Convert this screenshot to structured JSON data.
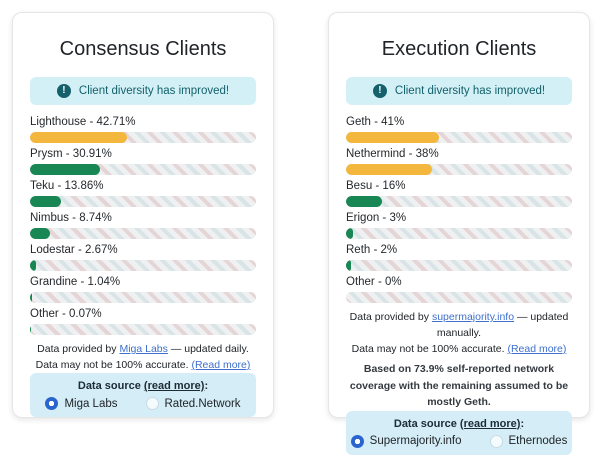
{
  "colors": {
    "warning_fill": "#f3b73d",
    "ok_fill": "#198754",
    "banner_bg": "#d3f0f6",
    "banner_fg": "#14616b",
    "link": "#3e70cc",
    "radio_selected": "#2a65cf",
    "datasource_bg": "#d4edf6"
  },
  "cards": [
    {
      "title": "Consensus Clients",
      "banner": {
        "icon": "exclamation-circle-icon",
        "text": "Client diversity has improved!"
      },
      "bars": [
        {
          "label": "Lighthouse - 42.71%",
          "percent": 42.71,
          "color": "#f3b73d"
        },
        {
          "label": "Prysm - 30.91%",
          "percent": 30.91,
          "color": "#198754"
        },
        {
          "label": "Teku - 13.86%",
          "percent": 13.86,
          "color": "#198754"
        },
        {
          "label": "Nimbus - 8.74%",
          "percent": 8.74,
          "color": "#198754"
        },
        {
          "label": "Lodestar - 2.67%",
          "percent": 2.67,
          "color": "#198754"
        },
        {
          "label": "Grandine - 1.04%",
          "percent": 1.04,
          "color": "#198754"
        },
        {
          "label": "Other - 0.07%",
          "percent": 0.07,
          "color": "#198754"
        }
      ],
      "attribution": {
        "line1_prefix": "Data provided by ",
        "line1_link": "Miga Labs",
        "line1_suffix": " — updated daily.",
        "line2_prefix": "Data may not be 100% accurate. ",
        "line2_link": "(Read more)"
      },
      "datasource": {
        "label": "Data source ",
        "readmore": "(read more)",
        "colon": ":",
        "options": [
          {
            "label": "Miga Labs",
            "selected": true
          },
          {
            "label": "Rated.Network",
            "selected": false
          }
        ]
      }
    },
    {
      "title": "Execution Clients",
      "banner": {
        "icon": "exclamation-circle-icon",
        "text": "Client diversity has improved!"
      },
      "bars": [
        {
          "label": "Geth - 41%",
          "percent": 41,
          "color": "#f3b73d"
        },
        {
          "label": "Nethermind - 38%",
          "percent": 38,
          "color": "#f3b73d"
        },
        {
          "label": "Besu - 16%",
          "percent": 16,
          "color": "#198754"
        },
        {
          "label": "Erigon - 3%",
          "percent": 3,
          "color": "#198754"
        },
        {
          "label": "Reth - 2%",
          "percent": 2,
          "color": "#198754"
        },
        {
          "label": "Other - 0%",
          "percent": 0,
          "color": "#198754"
        }
      ],
      "attribution": {
        "line1_prefix": "Data provided by ",
        "line1_link": "supermajority.info",
        "line1_suffix": " — updated manually.",
        "line2_prefix": "Data may not be 100% accurate. ",
        "line2_link": "(Read more)"
      },
      "note": "Based on 73.9% self-reported network coverage with the remaining assumed to be mostly Geth.",
      "datasource": {
        "label": "Data source ",
        "readmore": "(read more)",
        "colon": ":",
        "options": [
          {
            "label": "Supermajority.info",
            "selected": true
          },
          {
            "label": "Ethernodes",
            "selected": false
          }
        ]
      }
    }
  ]
}
